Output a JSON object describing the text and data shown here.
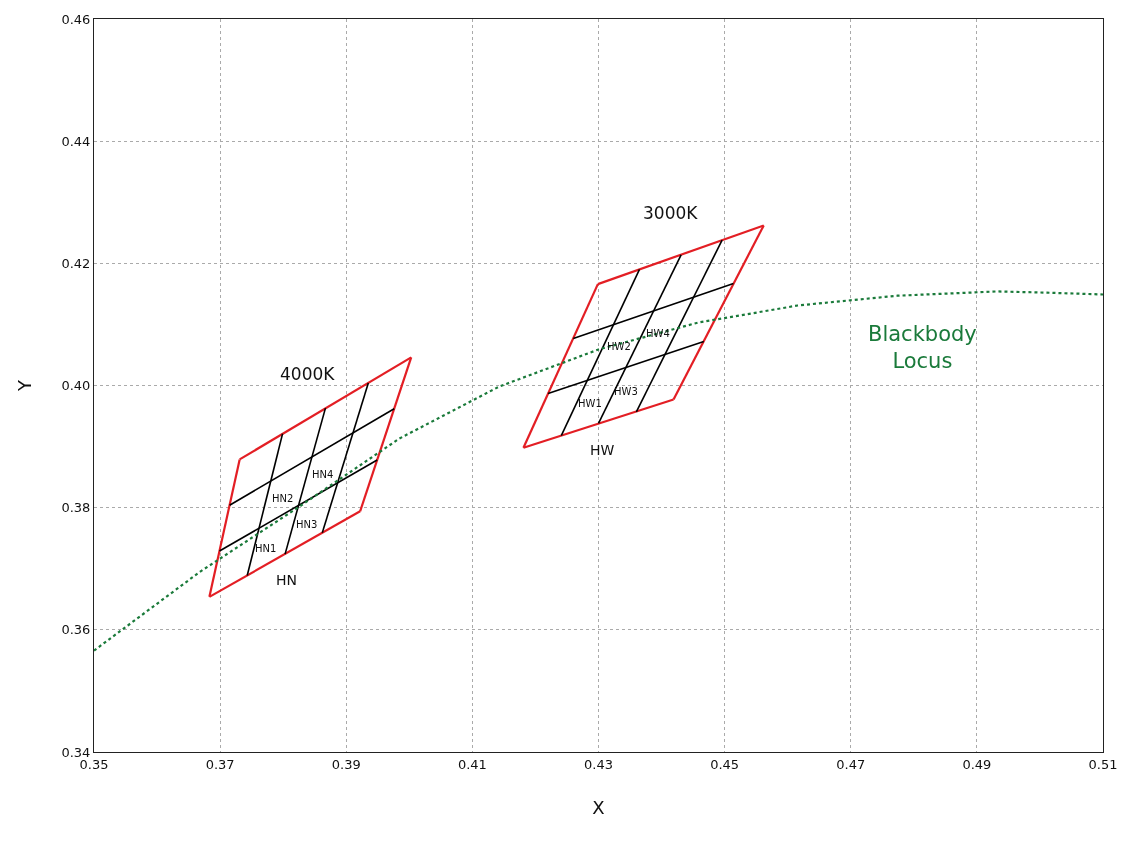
{
  "chart_data": {
    "type": "line",
    "xlabel": "X",
    "ylabel": "Y",
    "xlim": [
      0.35,
      0.51
    ],
    "ylim": [
      0.34,
      0.46
    ],
    "xticks": [
      0.35,
      0.37,
      0.39,
      0.41,
      0.43,
      0.45,
      0.47,
      0.49,
      0.51
    ],
    "yticks": [
      0.34,
      0.36,
      0.38,
      {
        "value": 0.4,
        "label": "0.40"
      },
      0.42,
      0.44,
      0.46
    ],
    "grid": true,
    "legend": false,
    "marker": "none",
    "series": [
      {
        "color": "#e31e24",
        "x": [
          0.3683,
          0.3731
        ],
        "values": [
          0.3654,
          0.3879
        ]
      },
      {
        "color": "#e31e24",
        "x": [
          0.3731,
          0.4003
        ],
        "values": [
          0.3879,
          0.4046
        ]
      },
      {
        "color": "#e31e24",
        "x": [
          0.3922,
          0.4003
        ],
        "values": [
          0.3794,
          0.4046
        ]
      },
      {
        "color": "#e31e24",
        "x": [
          0.3683,
          0.3922
        ],
        "values": [
          0.3654,
          0.3794
        ]
      },
      {
        "color": "#000000",
        "x": [
          0.3743,
          0.3799
        ],
        "values": [
          0.3689,
          0.3921
        ]
      },
      {
        "color": "#000000",
        "x": [
          0.3803,
          0.3867
        ],
        "values": [
          0.3724,
          0.3963
        ]
      },
      {
        "color": "#000000",
        "x": [
          0.3862,
          0.3935
        ],
        "values": [
          0.3759,
          0.4004
        ]
      },
      {
        "color": "#000000",
        "x": [
          0.3699,
          0.3949
        ],
        "values": [
          0.3729,
          0.3878
        ]
      },
      {
        "color": "#000000",
        "x": [
          0.3715,
          0.3976
        ],
        "values": [
          0.3804,
          0.3962
        ]
      },
      {
        "color": "#e31e24",
        "x": [
          0.4181,
          0.4299
        ],
        "values": [
          0.3898,
          0.4166
        ]
      },
      {
        "color": "#e31e24",
        "x": [
          0.4299,
          0.4562
        ],
        "values": [
          0.4166,
          0.4262
        ]
      },
      {
        "color": "#e31e24",
        "x": [
          0.4419,
          0.4562
        ],
        "values": [
          0.3977,
          0.4262
        ]
      },
      {
        "color": "#e31e24",
        "x": [
          0.4181,
          0.4419
        ],
        "values": [
          0.3898,
          0.3977
        ]
      },
      {
        "color": "#000000",
        "x": [
          0.4241,
          0.4365
        ],
        "values": [
          0.3918,
          0.419
        ]
      },
      {
        "color": "#000000",
        "x": [
          0.43,
          0.4431
        ],
        "values": [
          0.3938,
          0.4214
        ]
      },
      {
        "color": "#000000",
        "x": [
          0.436,
          0.4496
        ],
        "values": [
          0.3957,
          0.4238
        ]
      },
      {
        "color": "#000000",
        "x": [
          0.422,
          0.4467
        ],
        "values": [
          0.3987,
          0.4072
        ]
      },
      {
        "color": "#000000",
        "x": [
          0.426,
          0.4514
        ],
        "values": [
          0.4077,
          0.4167
        ]
      },
      {
        "name": "Blackbody Locus",
        "color": "#1a7a3a",
        "line_style": "dotted",
        "x": [
          0.35,
          0.3668,
          0.3826,
          0.3984,
          0.4142,
          0.43,
          0.4458,
          0.4616,
          0.4774,
          0.4932,
          0.5011,
          0.51
        ],
        "values": [
          0.3566,
          0.3695,
          0.3802,
          0.3913,
          0.3998,
          0.4059,
          0.4103,
          0.4131,
          0.4147,
          0.4154,
          0.4152,
          0.4149
        ]
      }
    ],
    "annotations": [
      {
        "text": "4000K",
        "x": 0.3838,
        "y": 0.3945
      },
      {
        "text": "HN",
        "x": 0.3805,
        "y": 0.3725
      },
      {
        "text": "HN1",
        "x": 0.3772,
        "y": 0.3773
      },
      {
        "text": "HN2",
        "x": 0.3799,
        "y": 0.3855
      },
      {
        "text": "HN3",
        "x": 0.3837,
        "y": 0.3811
      },
      {
        "text": "HN4",
        "x": 0.3862,
        "y": 0.3893
      },
      {
        "text": "3000K",
        "x": 0.4414,
        "y": 0.4208
      },
      {
        "text": "HW",
        "x": 0.4306,
        "y": 0.3939
      },
      {
        "text": "HW1",
        "x": 0.4286,
        "y": 0.401
      },
      {
        "text": "HW2",
        "x": 0.4332,
        "y": 0.4103
      },
      {
        "text": "HW3",
        "x": 0.4344,
        "y": 0.403
      },
      {
        "text": "HW4",
        "x": 0.4395,
        "y": 0.4125
      }
    ]
  }
}
